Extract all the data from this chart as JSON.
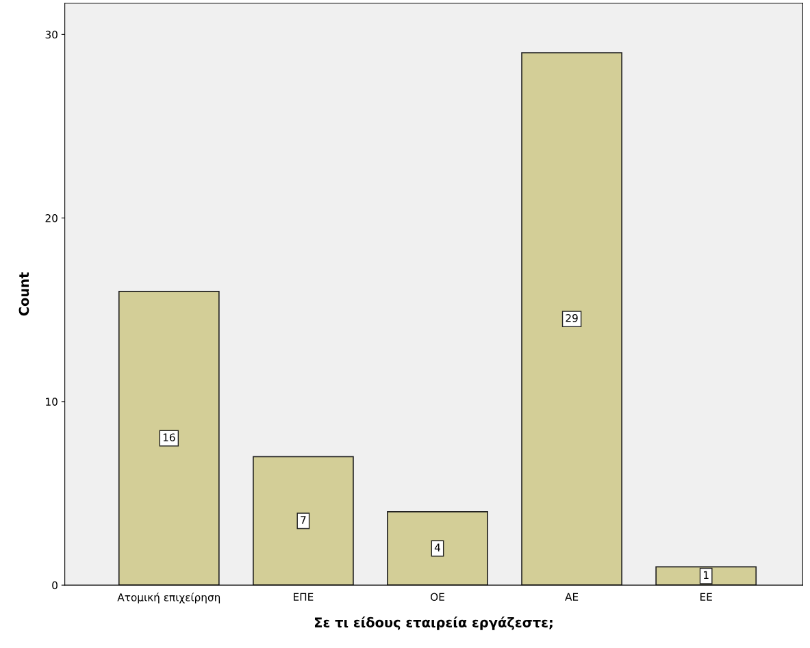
{
  "chart_data": {
    "type": "bar",
    "xlabel": "Σε τι είδους εταιρεία εργάζεστε;",
    "ylabel": "Count",
    "categories": [
      "Ατομική επιχείρηση",
      "ΕΠΕ",
      "ΟΕ",
      "ΑΕ",
      "ΕΕ"
    ],
    "values": [
      16,
      7,
      4,
      29,
      1
    ],
    "color": "#d3ce97",
    "ylim": [
      0,
      31.7
    ],
    "yticks": [
      0,
      10,
      20,
      30
    ],
    "grid": false,
    "data_labels": true
  }
}
